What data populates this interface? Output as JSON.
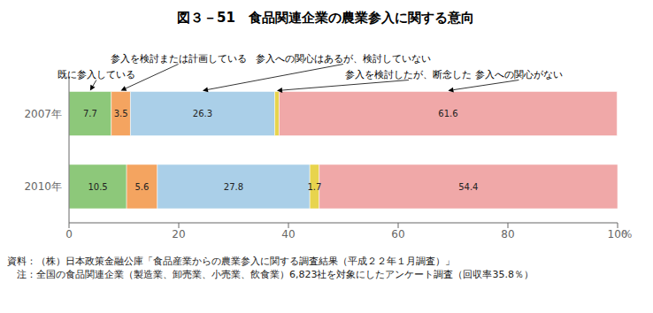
{
  "chart_data": {
    "type": "bar",
    "title": "図３－51　食品関連企業の農業参入に関する意向",
    "orientation": "horizontal",
    "stacked": true,
    "data_labels": true,
    "grid": false,
    "xlabel": "%",
    "categories": [
      "2007年",
      "2010年"
    ],
    "series": [
      {
        "name": "既に参入している",
        "color": "#8dc87a",
        "values": [
          7.7,
          10.5
        ]
      },
      {
        "name": "参入を検討または計画している",
        "color": "#f4a460",
        "values": [
          3.5,
          5.6
        ]
      },
      {
        "name": "参入への関心はあるが、検討していない",
        "color": "#aacfe8",
        "values": [
          26.3,
          27.8
        ]
      },
      {
        "name": "参入を検討したが、断念した",
        "color": "#e8d44d",
        "values": [
          0.8,
          1.7
        ],
        "value_labels": [
          null,
          "1.7"
        ]
      },
      {
        "name": "参入への関心がない",
        "color": "#f0a8a8",
        "values": [
          61.6,
          54.4
        ]
      }
    ],
    "xlim": [
      0,
      100
    ],
    "xticks": [
      0,
      20,
      40,
      60,
      80,
      100
    ],
    "footnotes": [
      "資料：（株）日本政策金融公庫「食品産業からの農業参入に関する調査結果（平成２２年１月調査）」",
      "　注：全国の食品関連企業（製造業、卸売業、小売業、飲食業）6,823社を対象にしたアンケート調査（回収率35.8％）"
    ]
  }
}
